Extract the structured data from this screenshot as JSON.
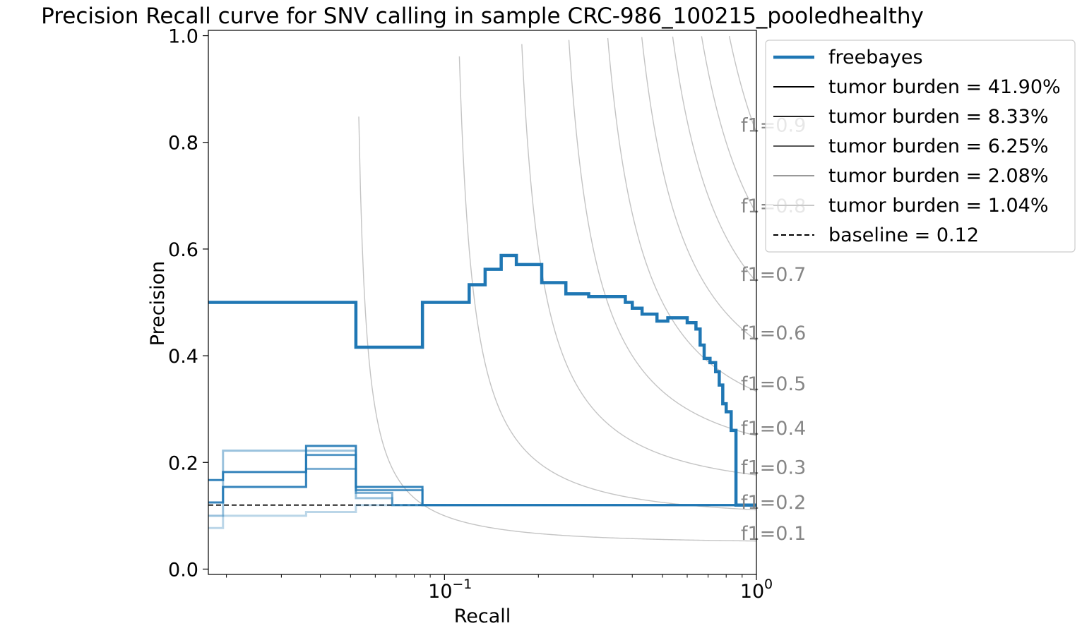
{
  "chart_data": {
    "type": "line",
    "title": "Precision Recall curve for SNV calling in sample CRC-986_100215_pooledhealthy",
    "xlabel": "Recall",
    "ylabel": "Precision",
    "xscale": "log",
    "xlim": [
      0.0175,
      1.0
    ],
    "ylim": [
      -0.01,
      1.01
    ],
    "x_ticks": [
      {
        "value": 0.1,
        "label": "10",
        "exp": "−1"
      },
      {
        "value": 1.0,
        "label": "10",
        "exp": "0"
      }
    ],
    "y_ticks": [
      {
        "value": 0.0,
        "label": "0.0"
      },
      {
        "value": 0.2,
        "label": "0.2"
      },
      {
        "value": 0.4,
        "label": "0.4"
      },
      {
        "value": 0.6,
        "label": "0.6"
      },
      {
        "value": 0.8,
        "label": "0.8"
      },
      {
        "value": 1.0,
        "label": "1.0"
      }
    ],
    "grid": false,
    "legend_position": "outside-top-right",
    "f1_isolines": [
      {
        "f1": 0.1,
        "label": "f1=0.1"
      },
      {
        "f1": 0.2,
        "label": "f1=0.2"
      },
      {
        "f1": 0.3,
        "label": "f1=0.3"
      },
      {
        "f1": 0.4,
        "label": "f1=0.4"
      },
      {
        "f1": 0.5,
        "label": "f1=0.5"
      },
      {
        "f1": 0.6,
        "label": "f1=0.6"
      },
      {
        "f1": 0.7,
        "label": "f1=0.7"
      },
      {
        "f1": 0.8,
        "label": "f1=0.8"
      },
      {
        "f1": 0.9,
        "label": "f1=0.9"
      }
    ],
    "series": [
      {
        "name": "freebayes",
        "role": "main",
        "color": "#1f77b4",
        "x": [
          0.0175,
          0.052,
          0.052,
          0.085,
          0.085,
          0.12,
          0.12,
          0.135,
          0.135,
          0.152,
          0.152,
          0.17,
          0.17,
          0.205,
          0.205,
          0.245,
          0.245,
          0.29,
          0.29,
          0.38,
          0.38,
          0.4,
          0.4,
          0.43,
          0.43,
          0.48,
          0.48,
          0.52,
          0.52,
          0.6,
          0.6,
          0.64,
          0.64,
          0.66,
          0.66,
          0.68,
          0.68,
          0.71,
          0.71,
          0.74,
          0.74,
          0.76,
          0.76,
          0.78,
          0.78,
          0.8,
          0.8,
          0.83,
          0.83,
          0.86,
          0.86,
          1.0
        ],
        "y": [
          0.5,
          0.5,
          0.416,
          0.416,
          0.5,
          0.5,
          0.533,
          0.533,
          0.562,
          0.562,
          0.588,
          0.588,
          0.571,
          0.571,
          0.537,
          0.537,
          0.516,
          0.516,
          0.511,
          0.511,
          0.5,
          0.5,
          0.489,
          0.489,
          0.478,
          0.478,
          0.465,
          0.465,
          0.471,
          0.471,
          0.462,
          0.462,
          0.45,
          0.45,
          0.42,
          0.42,
          0.395,
          0.395,
          0.387,
          0.387,
          0.37,
          0.37,
          0.345,
          0.345,
          0.31,
          0.31,
          0.295,
          0.295,
          0.26,
          0.26,
          0.12,
          0.12
        ]
      },
      {
        "name": "tumor burden = 41.90%",
        "role": "burden",
        "color": "#1f77b4",
        "opacity": 0.9,
        "x": [
          0.0175,
          0.0195,
          0.0195,
          0.036,
          0.036,
          0.052,
          0.052,
          0.085,
          0.085,
          1.0
        ],
        "y": [
          0.167,
          0.167,
          0.182,
          0.182,
          0.231,
          0.231,
          0.154,
          0.154,
          0.12,
          0.12
        ]
      },
      {
        "name": "tumor burden = 8.33%",
        "role": "burden",
        "color": "#1f77b4",
        "opacity": 0.75,
        "x": [
          0.0175,
          0.0195,
          0.0195,
          0.036,
          0.036,
          0.052,
          0.052,
          0.085,
          0.085,
          1.0
        ],
        "y": [
          0.125,
          0.125,
          0.154,
          0.154,
          0.214,
          0.214,
          0.148,
          0.148,
          0.12,
          0.12
        ]
      },
      {
        "name": "tumor burden = 6.25%",
        "role": "burden",
        "color": "#1f77b4",
        "opacity": 0.6,
        "x": [
          0.0175,
          0.0195,
          0.0195,
          0.036,
          0.036,
          0.052,
          0.052,
          0.068,
          0.068,
          1.0
        ],
        "y": [
          0.125,
          0.125,
          0.154,
          0.154,
          0.188,
          0.188,
          0.143,
          0.143,
          0.12,
          0.12
        ]
      },
      {
        "name": "tumor burden = 2.08%",
        "role": "burden",
        "color": "#1f77b4",
        "opacity": 0.45,
        "x": [
          0.0175,
          0.0195,
          0.0195,
          0.036,
          0.036,
          0.052,
          0.052,
          0.068,
          0.068,
          1.0
        ],
        "y": [
          0.1,
          0.1,
          0.222,
          0.222,
          0.222,
          0.222,
          0.133,
          0.133,
          0.12,
          0.12
        ]
      },
      {
        "name": "tumor burden = 1.04%",
        "role": "burden",
        "color": "#1f77b4",
        "opacity": 0.3,
        "x": [
          0.0175,
          0.0195,
          0.0195,
          0.036,
          0.036,
          0.052,
          0.052,
          1.0
        ],
        "y": [
          0.077,
          0.077,
          0.1,
          0.1,
          0.107,
          0.107,
          0.12,
          0.12
        ]
      },
      {
        "name": "baseline = 0.12",
        "role": "baseline",
        "color": "#000000",
        "x": [
          0.0175,
          1.0
        ],
        "y": [
          0.12,
          0.12
        ]
      }
    ],
    "legend": [
      {
        "label": "freebayes",
        "color": "#1f77b4",
        "style": "thick"
      },
      {
        "label": "tumor burden = 41.90%",
        "color": "#000000",
        "style": "solid"
      },
      {
        "label": "tumor burden = 8.33%",
        "color": "#222222",
        "style": "solid"
      },
      {
        "label": "tumor burden = 6.25%",
        "color": "#555555",
        "style": "solid"
      },
      {
        "label": "tumor burden = 2.08%",
        "color": "#999999",
        "style": "solid"
      },
      {
        "label": "tumor burden = 1.04%",
        "color": "#c8c8c8",
        "style": "solid"
      },
      {
        "label": "baseline = 0.12",
        "color": "#000000",
        "style": "dashed"
      }
    ]
  }
}
